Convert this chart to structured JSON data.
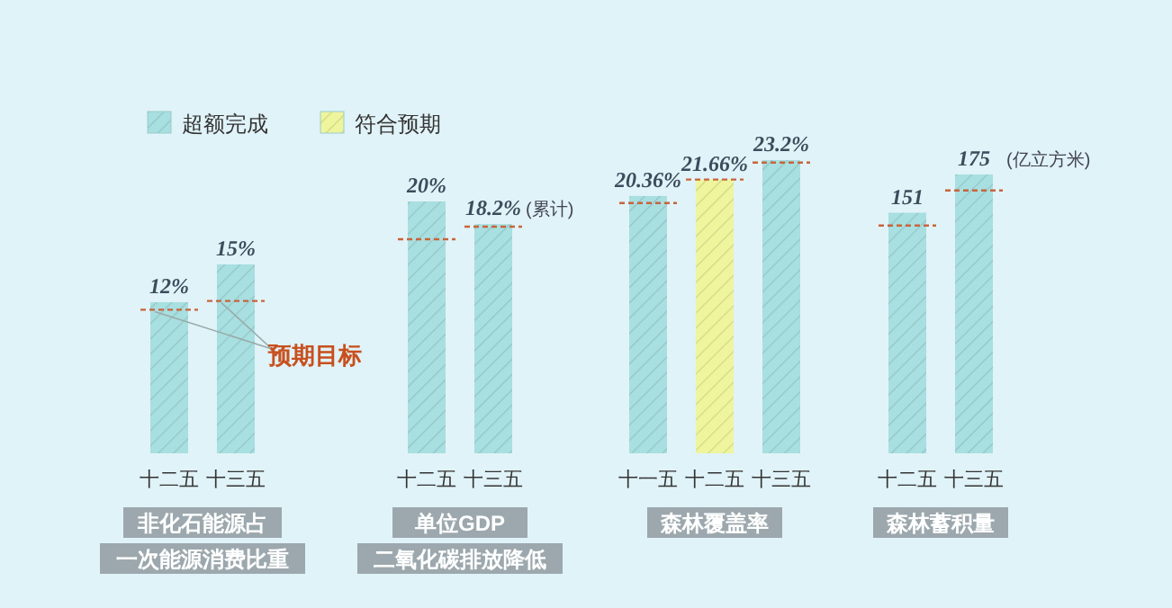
{
  "chart_data": [
    {
      "type": "bar",
      "title": "非化石能源占",
      "subtitle": "一次能源消费比重",
      "categories": [
        "十二五",
        "十三五"
      ],
      "series": [
        {
          "color": "#a8dfe0",
          "values": [
            12,
            15
          ],
          "value_labels": [
            "12%",
            "15%"
          ]
        }
      ],
      "ref_lines": [
        {
          "axis": "y",
          "value": 11.4,
          "label": "预期目标",
          "color": "#c8643c",
          "line_style": "dashed"
        },
        {
          "axis": "y",
          "value": 12.1,
          "color": "#c8643c",
          "line_style": "dashed"
        }
      ]
    },
    {
      "type": "bar",
      "title": "单位GDP",
      "subtitle": "二氧化碳排放降低",
      "categories": [
        "十二五",
        "十三五"
      ],
      "series": [
        {
          "color": "#a8dfe0",
          "values": [
            20,
            18.2
          ],
          "value_labels": [
            "20%",
            "18.2%"
          ]
        }
      ],
      "annotations": [
        "(累计)"
      ],
      "ref_lines": [
        {
          "axis": "y",
          "value": 17,
          "color": "#c8643c",
          "line_style": "dashed"
        },
        {
          "axis": "y",
          "value": 18,
          "color": "#c8643c",
          "line_style": "dashed"
        }
      ]
    },
    {
      "type": "bar",
      "title": "森林覆盖率",
      "categories": [
        "十一五",
        "十二五",
        "十三五"
      ],
      "legend": "top left",
      "series": [
        {
          "name": "超额完成",
          "color": "#a8dfe0",
          "values": [
            20.36,
            null,
            23.2
          ],
          "value_labels": [
            "20.36%",
            null,
            "23.2%"
          ]
        },
        {
          "name": "符合预期",
          "color": "#eef59c",
          "values": [
            null,
            21.66,
            null
          ],
          "value_labels": [
            null,
            "21.66%",
            null
          ]
        }
      ],
      "ref_lines": [
        {
          "axis": "y",
          "value": 19.8,
          "color": "#c8643c",
          "line_style": "dashed"
        },
        {
          "axis": "y",
          "value": 21.66,
          "color": "#c8643c",
          "line_style": "dashed"
        },
        {
          "axis": "y",
          "value": 23,
          "color": "#c8643c",
          "line_style": "dashed"
        }
      ]
    },
    {
      "type": "bar",
      "title": "森林蓄积量",
      "categories": [
        "十二五",
        "十三五"
      ],
      "series": [
        {
          "color": "#a8dfe0",
          "values": [
            151,
            175
          ],
          "value_labels": [
            "151",
            "175"
          ]
        }
      ],
      "annotations": [
        "(亿立方米)"
      ],
      "ref_lines": [
        {
          "axis": "y",
          "value": 143,
          "color": "#c8643c",
          "line_style": "dashed"
        },
        {
          "axis": "y",
          "value": 165,
          "color": "#c8643c",
          "line_style": "dashed"
        }
      ]
    }
  ]
}
